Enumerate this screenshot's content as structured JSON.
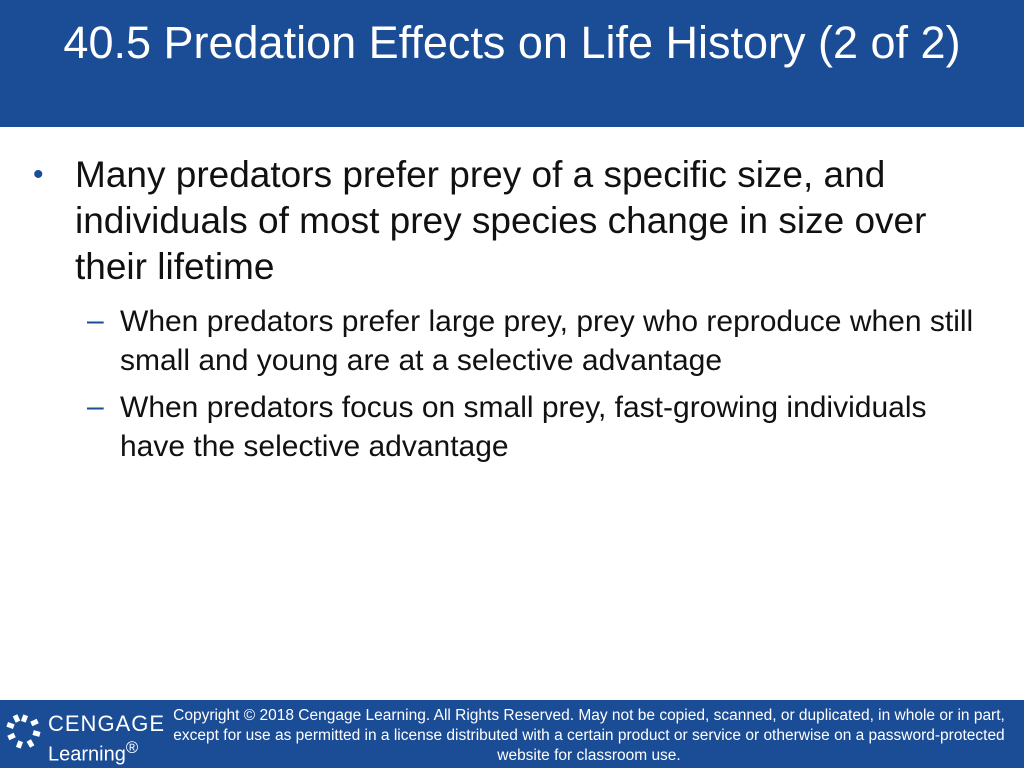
{
  "slide": {
    "title": "40.5 Predation Effects on Life History (2 of 2)",
    "bullets": [
      {
        "mark": "•",
        "text": "Many predators prefer prey of a specific size, and individuals of most prey species change in size over their lifetime",
        "subitems": [
          {
            "mark": "–",
            "text": "When predators prefer large prey, prey who reproduce when still small and young are at a selective advantage"
          },
          {
            "mark": "–",
            "text": "When predators focus on small prey, fast-growing individuals have the selective advantage"
          }
        ]
      }
    ]
  },
  "footer": {
    "logo": {
      "line1": "CENGAGE",
      "line2": "Learning",
      "registered_mark": "®",
      "icon": "cengage-logo-icon"
    },
    "copyright": "Copyright © 2018 Cengage Learning. All Rights Reserved. May not be copied, scanned, or duplicated, in whole or in part, except for use as permitted in a license distributed with a certain product or service or otherwise on a password-protected website for classroom use."
  },
  "colors": {
    "brand_blue": "#1b4c96",
    "text": "#111111",
    "background": "#ffffff"
  }
}
